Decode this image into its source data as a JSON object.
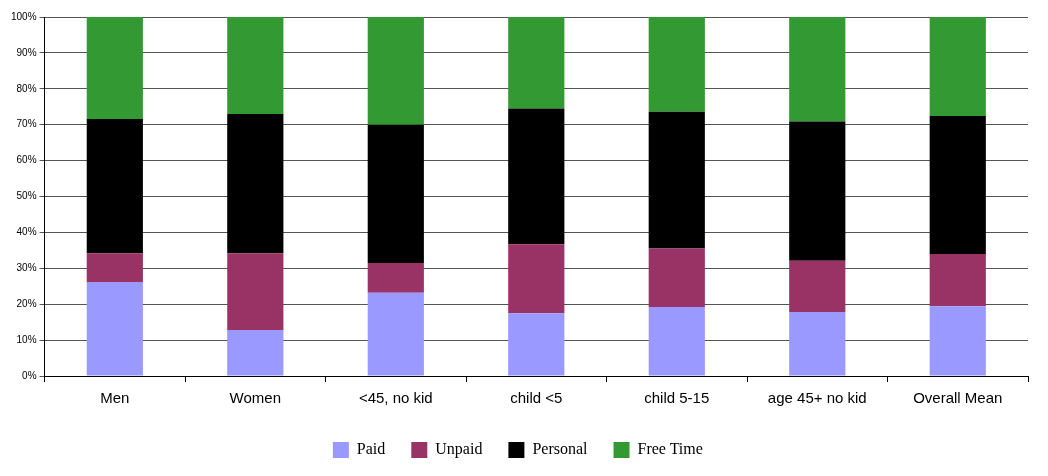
{
  "chart_data": {
    "type": "bar",
    "stacked": true,
    "categories": [
      "Men",
      "Women",
      "<45, no kid",
      "child <5",
      "child 5-15",
      "age 45+ no kid",
      "Overall Mean"
    ],
    "series": [
      {
        "name": "Paid",
        "color": "#9999ff",
        "values": [
          26.2,
          12.8,
          23.2,
          17.5,
          19.2,
          17.8,
          19.4
        ]
      },
      {
        "name": "Unpaid",
        "color": "#993366",
        "values": [
          8,
          21.4,
          8.3,
          19.2,
          16.3,
          14.3,
          14.6
        ]
      },
      {
        "name": "Personal",
        "color": "#000000",
        "values": [
          37.4,
          38.8,
          38.5,
          37.8,
          38.1,
          38.8,
          38.4
        ]
      },
      {
        "name": "Free Time",
        "color": "#339933",
        "values": [
          28.4,
          27,
          30,
          25.5,
          26.4,
          29.1,
          27.6
        ]
      }
    ],
    "ylim": [
      0,
      100
    ],
    "yticks": [
      {
        "value": 0,
        "label": "0%"
      },
      {
        "value": 10,
        "label": "10%"
      },
      {
        "value": 20,
        "label": "20%"
      },
      {
        "value": 30,
        "label": "30%"
      },
      {
        "value": 40,
        "label": "40%"
      },
      {
        "value": 50,
        "label": "50%"
      },
      {
        "value": 60,
        "label": "60%"
      },
      {
        "value": 70,
        "label": "70%"
      },
      {
        "value": 80,
        "label": "80%"
      },
      {
        "value": 90,
        "label": "90%"
      },
      {
        "value": 100,
        "label": "100%"
      }
    ],
    "grid": "y",
    "legend": "bottom"
  }
}
